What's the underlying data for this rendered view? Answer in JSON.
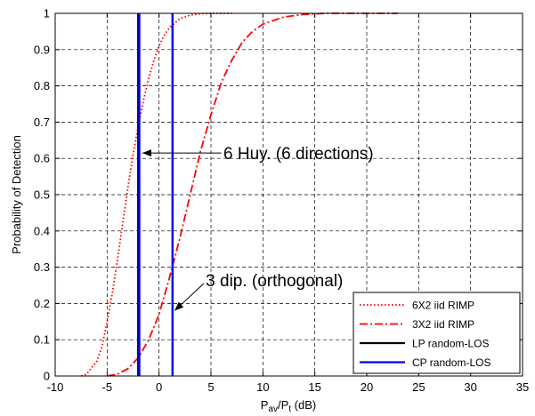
{
  "chart_data": {
    "type": "line",
    "title": "",
    "xlabel": {
      "main": "P",
      "sub1": "av",
      "mid": "/P",
      "sub2": "t",
      "tail": " (dB)"
    },
    "ylabel": "Probability of Detection",
    "xlim": [
      -10,
      35
    ],
    "ylim": [
      0,
      1
    ],
    "xticks": [
      -10,
      -5,
      0,
      5,
      10,
      15,
      20,
      25,
      30,
      35
    ],
    "yticks": [
      0,
      0.1,
      0.2,
      0.3,
      0.4,
      0.5,
      0.6,
      0.7,
      0.8,
      0.9,
      1
    ],
    "grid": true,
    "legend_position": "bottom-right",
    "series": [
      {
        "name": "6X2 iid RIMP",
        "color": "#ff0000",
        "dash": "dotted",
        "x": [
          -7.5,
          -7,
          -6,
          -5.5,
          -5,
          -4.5,
          -4,
          -3.5,
          -3,
          -2.5,
          -2,
          -1.5,
          -1,
          -0.5,
          0,
          0.5,
          1,
          2,
          3,
          4,
          5,
          6,
          7
        ],
        "y": [
          0.0,
          0.005,
          0.04,
          0.08,
          0.15,
          0.23,
          0.32,
          0.42,
          0.52,
          0.61,
          0.69,
          0.76,
          0.82,
          0.87,
          0.91,
          0.94,
          0.96,
          0.985,
          0.995,
          0.999,
          1,
          1,
          1
        ]
      },
      {
        "name": "3X2 iid RIMP",
        "color": "#ff0000",
        "dash": "dashdot",
        "x": [
          -5,
          -4,
          -3,
          -2,
          -1,
          0,
          1,
          2,
          3,
          4,
          5,
          6,
          7,
          8,
          9,
          10,
          12,
          14,
          16,
          20,
          23
        ],
        "y": [
          0.0,
          0.005,
          0.02,
          0.05,
          0.1,
          0.17,
          0.27,
          0.38,
          0.5,
          0.62,
          0.72,
          0.81,
          0.87,
          0.92,
          0.95,
          0.97,
          0.99,
          0.997,
          1,
          1,
          1
        ]
      },
      {
        "name": "LP random-LOS",
        "color": "#000000",
        "dash": "solid",
        "x": [
          -2,
          -2,
          -2,
          -2
        ],
        "y": [
          0,
          0.3,
          0.7,
          1
        ]
      },
      {
        "name": "CP random-LOS",
        "color": "#0000ff",
        "dash": "solid",
        "x": [
          -1.9,
          -1.9,
          -1.9,
          -1.9,
          1.3,
          1.3,
          1.3,
          1.3
        ],
        "y": [
          0,
          0.5,
          1,
          1,
          1,
          0.5,
          0,
          0
        ],
        "segments": [
          [
            0,
            3
          ],
          [
            4,
            7
          ]
        ]
      }
    ],
    "annotations": [
      {
        "text": "6 Huy. (6 directions)",
        "text_x": 6.2,
        "text_y": 0.615,
        "arrow_from_x": 6,
        "arrow_from_y": 0.615,
        "arrow_to_x": -1.6,
        "arrow_to_y": 0.615
      },
      {
        "text": "3 dip. (orthogonal)",
        "text_x": 4.5,
        "text_y": 0.265,
        "arrow_from_x": 4.3,
        "arrow_from_y": 0.255,
        "arrow_to_x": 1.5,
        "arrow_to_y": 0.18
      }
    ]
  }
}
